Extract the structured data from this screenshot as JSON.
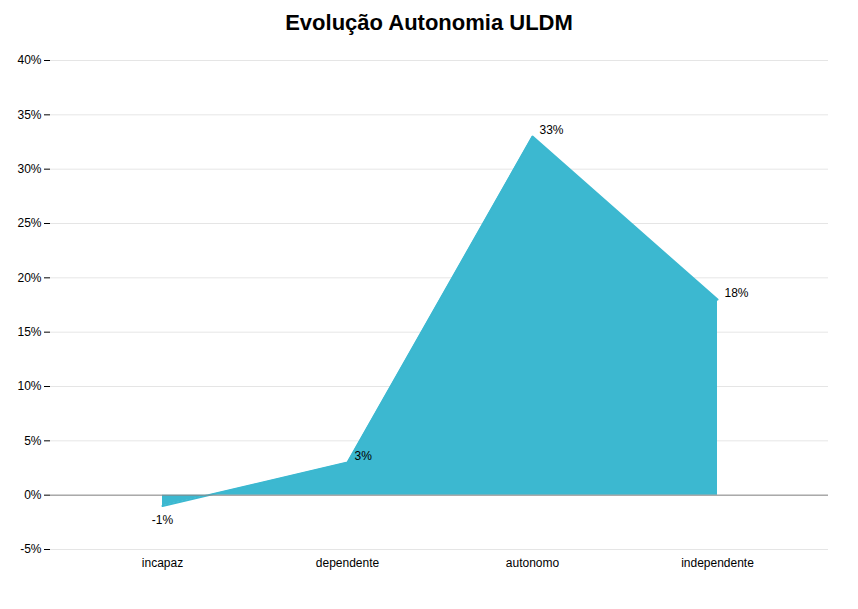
{
  "chart_data": {
    "type": "area",
    "title": "Evolução Autonomia ULDM",
    "categories": [
      "incapaz",
      "dependente",
      "autonomo",
      "independente"
    ],
    "values": [
      -1,
      3,
      33,
      18
    ],
    "value_labels": [
      "-1%",
      "3%",
      "33%",
      "18%"
    ],
    "data_labels": true,
    "color": "#3cb8d0",
    "ylim": [
      -5,
      40
    ],
    "yticks": [
      {
        "value": -5,
        "label": "-5%"
      },
      {
        "value": 0,
        "label": "0%"
      },
      {
        "value": 5,
        "label": "5%"
      },
      {
        "value": 10,
        "label": "10%"
      },
      {
        "value": 15,
        "label": "15%"
      },
      {
        "value": 20,
        "label": "20%"
      },
      {
        "value": 25,
        "label": "25%"
      },
      {
        "value": 30,
        "label": "30%"
      },
      {
        "value": 35,
        "label": "35%"
      },
      {
        "value": 40,
        "label": "40%"
      }
    ],
    "grid": true
  }
}
